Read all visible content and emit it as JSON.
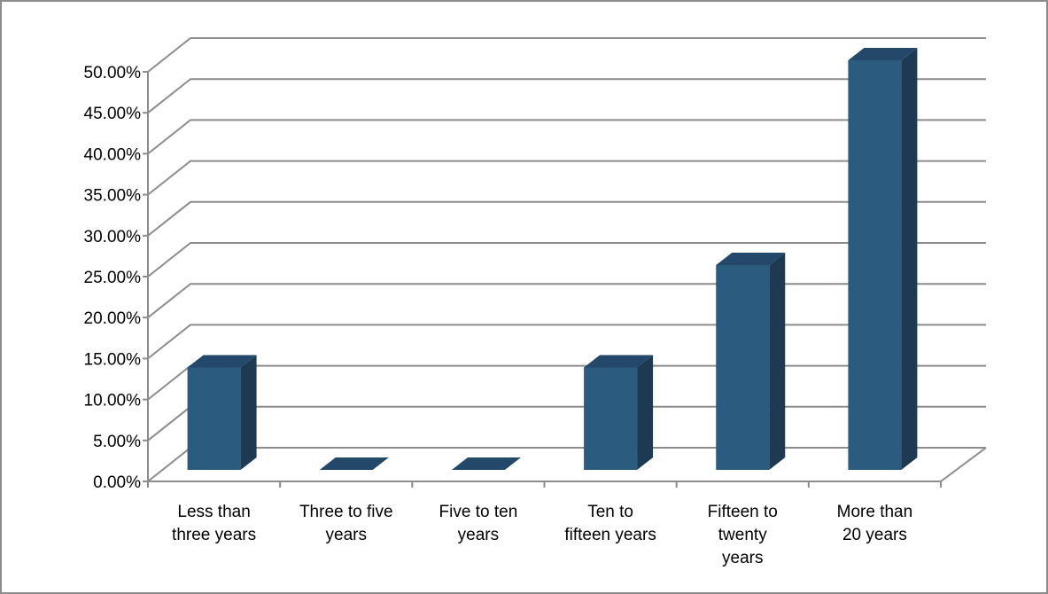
{
  "chart_data": {
    "type": "bar",
    "categories": [
      [
        "Less than",
        "three years"
      ],
      [
        "Three to five",
        "years"
      ],
      [
        "Five to ten",
        "years"
      ],
      [
        "Ten to",
        "fifteen years"
      ],
      [
        "Fifteen to",
        "twenty",
        "years"
      ],
      [
        "More than",
        "20 years"
      ]
    ],
    "values": [
      0.125,
      0.0,
      0.0,
      0.125,
      0.25,
      0.5
    ],
    "ylim": [
      0,
      0.5
    ],
    "ytick_step": 0.05,
    "ytick_labels": [
      "0.00%",
      "5.00%",
      "10.00%",
      "15.00%",
      "20.00%",
      "25.00%",
      "30.00%",
      "35.00%",
      "40.00%",
      "45.00%",
      "50.00%"
    ],
    "title": "",
    "xlabel": "",
    "ylabel": "",
    "grid": true,
    "legend": "none",
    "style": "3d-column"
  },
  "colors": {
    "bar_front": "#2B5C80",
    "bar_side": "#1E3A52",
    "bar_top": "#24486A",
    "grid": "#8C8C8C",
    "frame": "#8C8C8C",
    "text": "#000000"
  }
}
